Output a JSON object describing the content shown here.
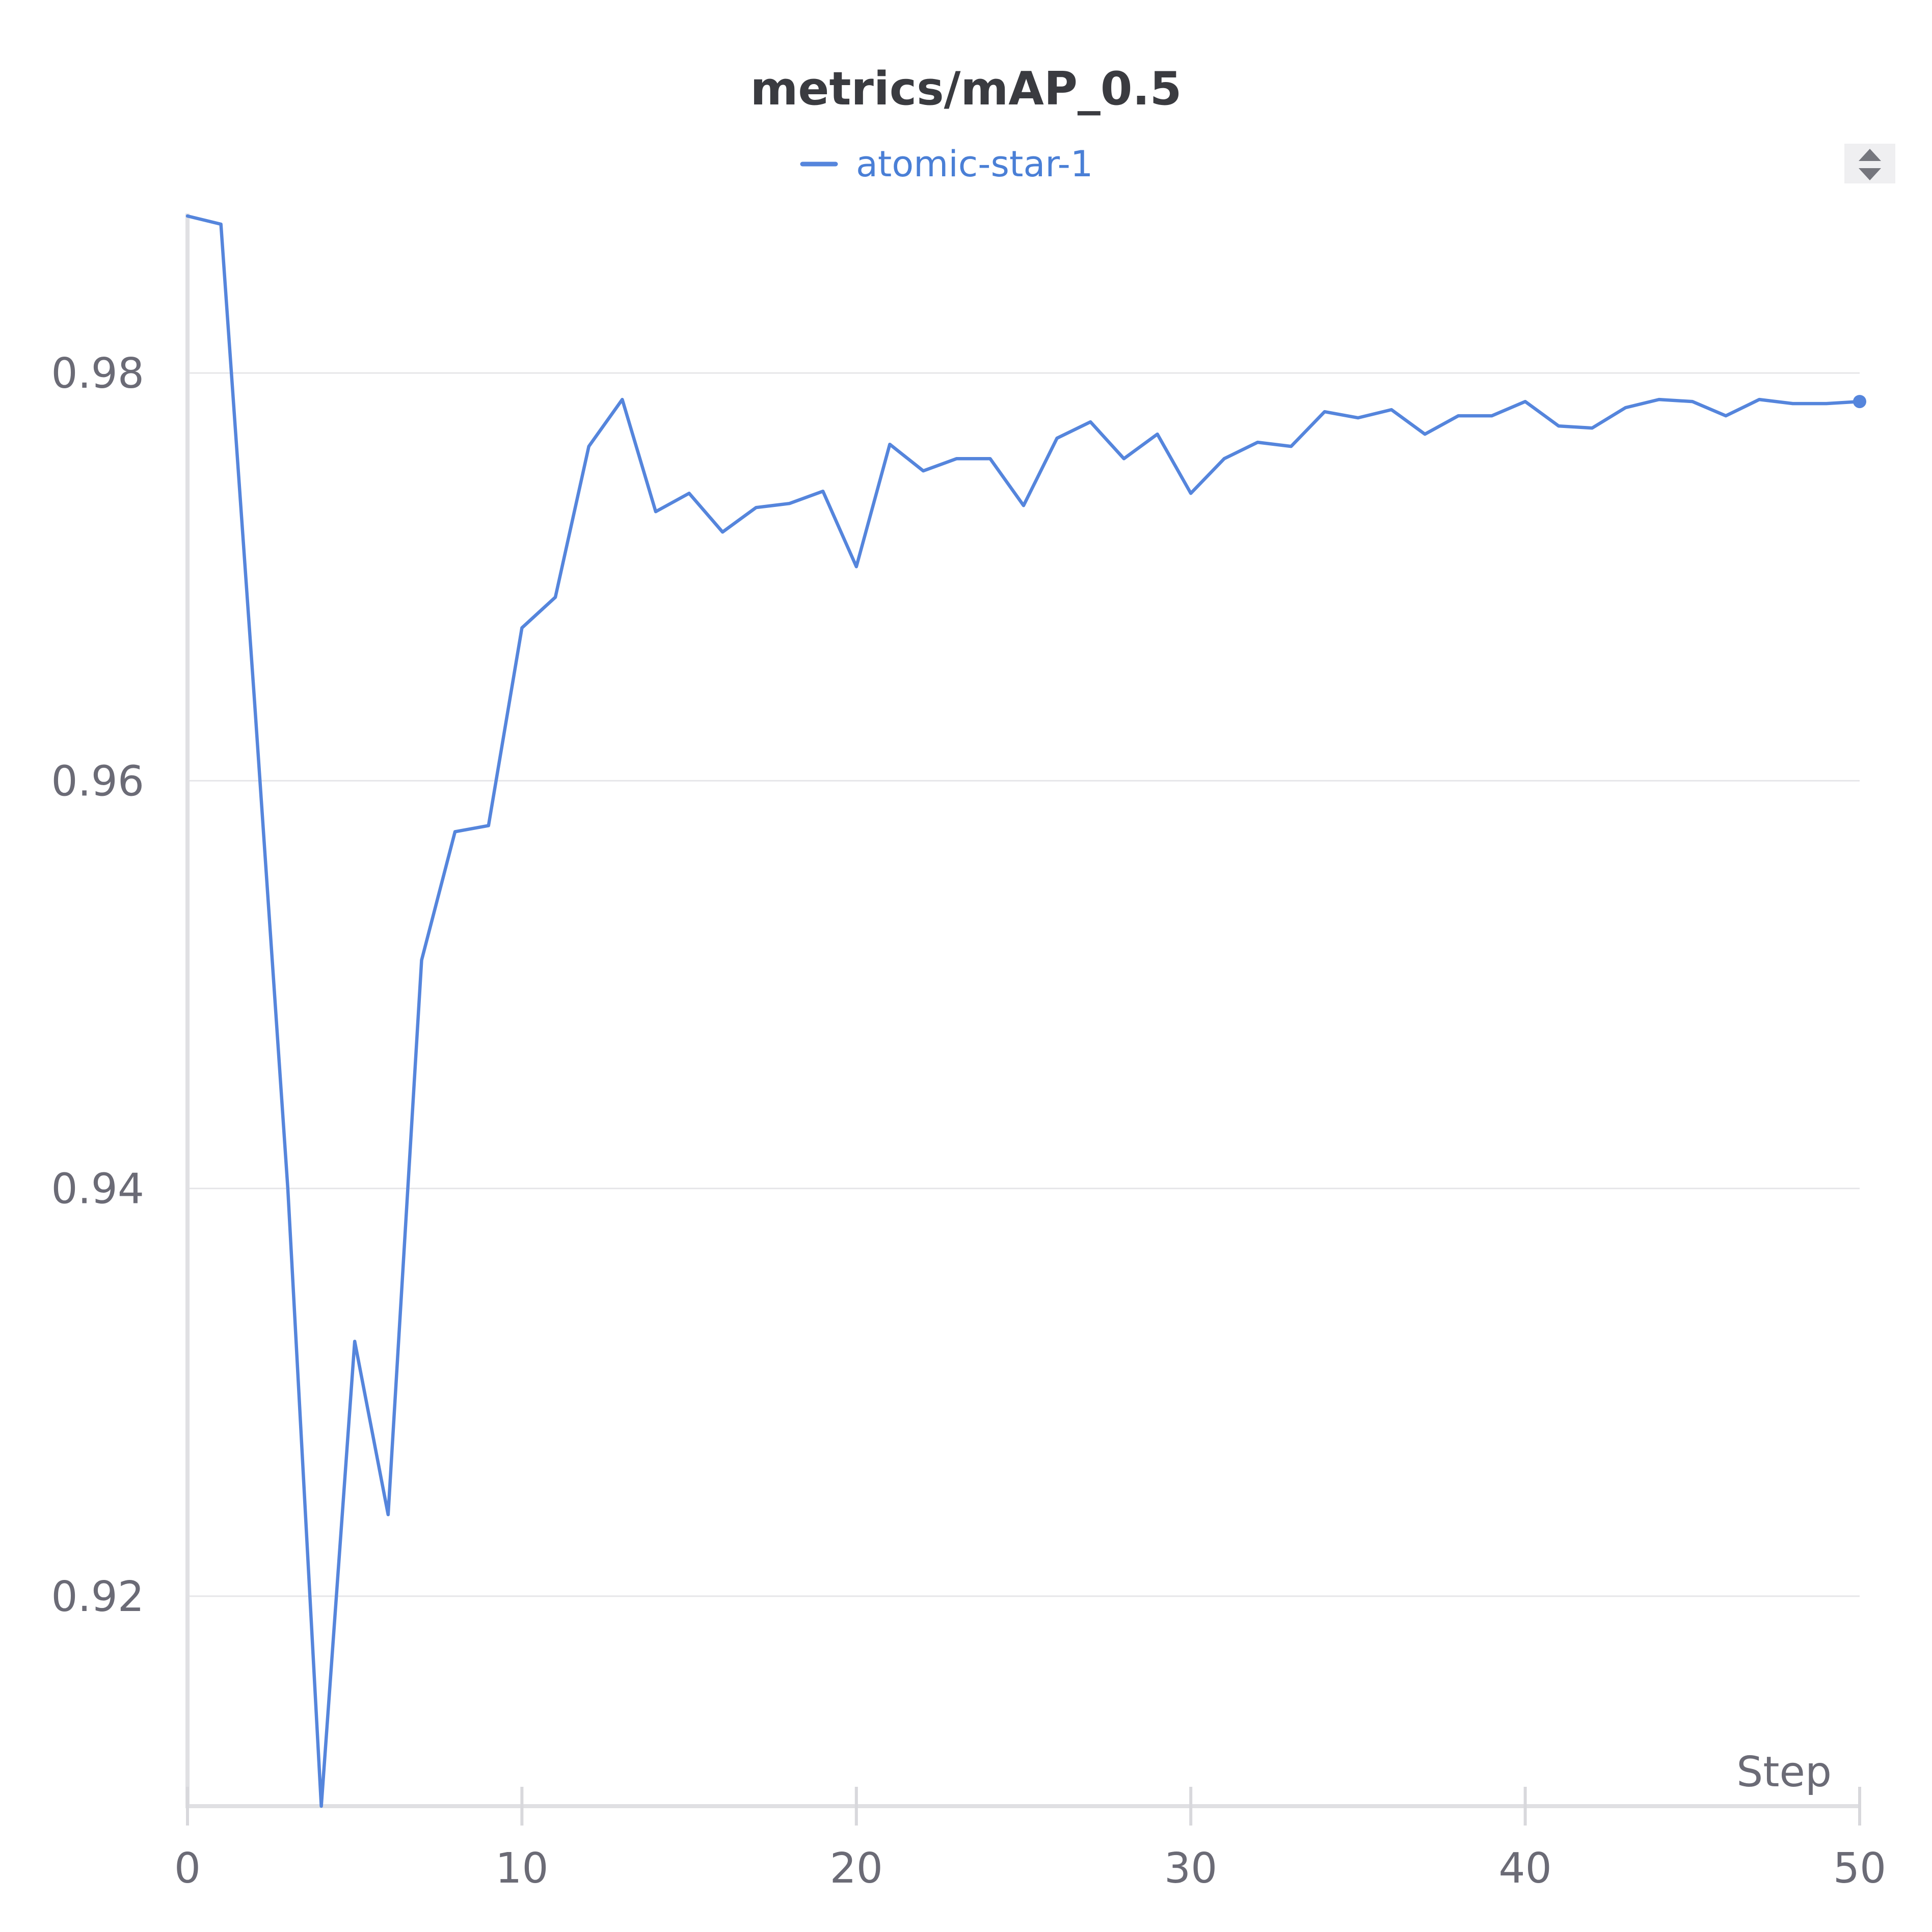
{
  "chart_data": {
    "type": "line",
    "title": "metrics/mAP_0.5",
    "xlabel": "Step",
    "ylabel": "",
    "xlim": [
      0,
      50
    ],
    "ylim": [
      0.9097,
      0.9877
    ],
    "x_ticks": [
      0,
      10,
      20,
      30,
      40,
      50
    ],
    "y_ticks": [
      0.92,
      0.94,
      0.96,
      0.98
    ],
    "x_tick_labels": [
      "0",
      "10",
      "20",
      "30",
      "40",
      "50"
    ],
    "y_tick_labels": [
      "0.92",
      "0.94",
      "0.96",
      "0.98"
    ],
    "grid": true,
    "legend_position": "top-center",
    "series": [
      {
        "name": "atomic-star-1",
        "color": "#5585dc",
        "x": [
          0,
          1,
          2,
          3,
          4,
          5,
          6,
          7,
          8,
          9,
          10,
          11,
          12,
          13,
          14,
          15,
          16,
          17,
          18,
          19,
          20,
          21,
          22,
          23,
          24,
          25,
          26,
          27,
          28,
          29,
          30,
          31,
          32,
          33,
          34,
          35,
          36,
          37,
          38,
          39,
          40,
          41,
          42,
          43,
          44,
          45,
          46,
          47,
          48,
          49,
          50
        ],
        "y": [
          0.9877,
          0.9873,
          0.964,
          0.94,
          0.9097,
          0.9325,
          0.924,
          0.9512,
          0.9575,
          0.9578,
          0.9675,
          0.969,
          0.9764,
          0.9787,
          0.9732,
          0.9741,
          0.9722,
          0.9734,
          0.9736,
          0.9742,
          0.9705,
          0.9765,
          0.9752,
          0.9758,
          0.9758,
          0.9735,
          0.9768,
          0.9776,
          0.9758,
          0.977,
          0.9741,
          0.9758,
          0.9766,
          0.9764,
          0.9781,
          0.9778,
          0.9782,
          0.977,
          0.9779,
          0.9779,
          0.9786,
          0.9774,
          0.9773,
          0.9783,
          0.9787,
          0.9786,
          0.9779,
          0.9787,
          0.9785,
          0.9785,
          0.9786
        ]
      }
    ]
  },
  "legend": {
    "scroll_icon": "sort-arrows-icon"
  }
}
